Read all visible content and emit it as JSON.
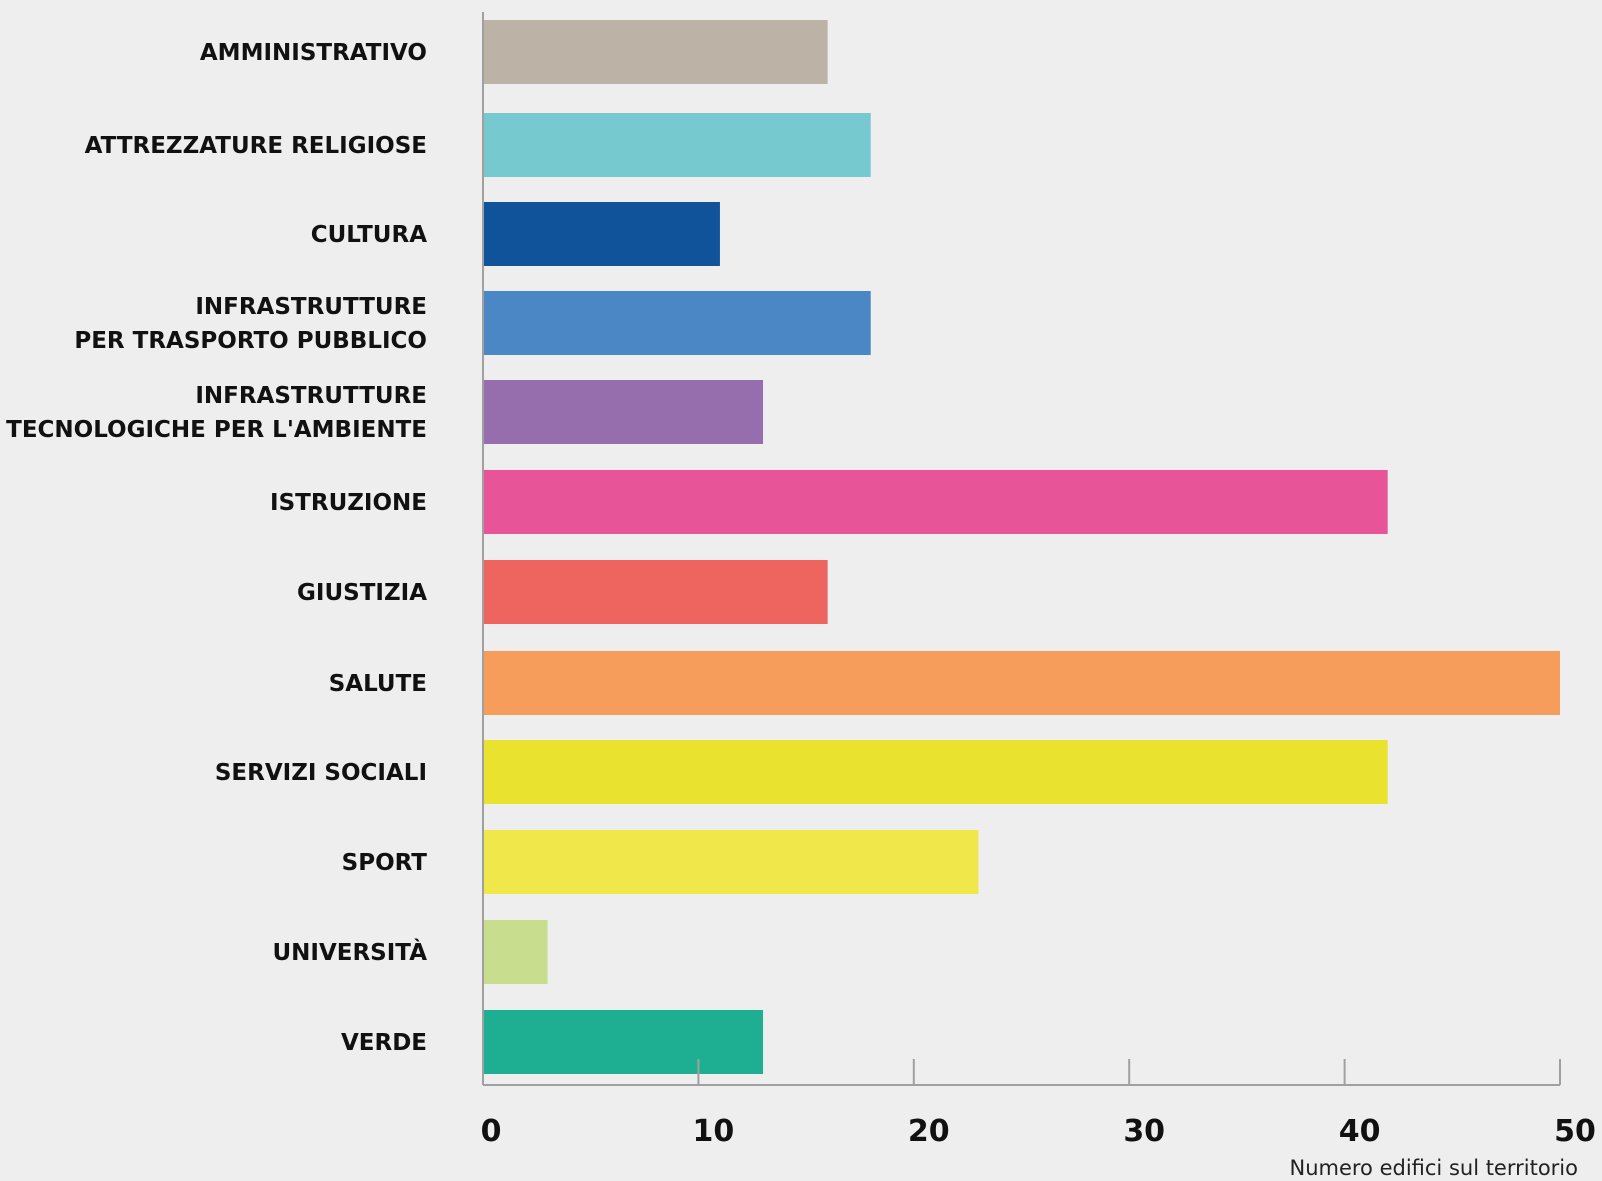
{
  "chart_data": {
    "type": "bar",
    "orientation": "horizontal",
    "categories": [
      [
        "AMMINISTRATIVO"
      ],
      [
        "ATTREZZATURE RELIGIOSE"
      ],
      [
        "CULTURA"
      ],
      [
        "INFRASTRUTTURE",
        "PER TRASPORTO PUBBLICO"
      ],
      [
        "INFRASTRUTTURE",
        "TECNOLOGICHE PER L'AMBIENTE"
      ],
      [
        "ISTRUZIONE"
      ],
      [
        "GIUSTIZIA"
      ],
      [
        "SALUTE"
      ],
      [
        "SERVIZI SOCIALI"
      ],
      [
        "SPORT"
      ],
      [
        "UNIVERSITÀ"
      ],
      [
        "VERDE"
      ]
    ],
    "values": [
      16,
      18,
      11,
      18,
      13,
      42,
      16,
      50,
      42,
      23,
      3,
      13
    ],
    "colors": [
      "#bdb2a6",
      "#76c9cf",
      "#10539a",
      "#4c87c5",
      "#966eae",
      "#e75598",
      "#ed655e",
      "#f69d5b",
      "#e9e22f",
      "#f0e84b",
      "#c9dd8f",
      "#1eaf93"
    ],
    "xlim": [
      0,
      50
    ],
    "xticks": [
      0,
      10,
      20,
      30,
      40,
      50
    ],
    "xlabel": "Numero edifici sul territorio",
    "grid": false
  }
}
